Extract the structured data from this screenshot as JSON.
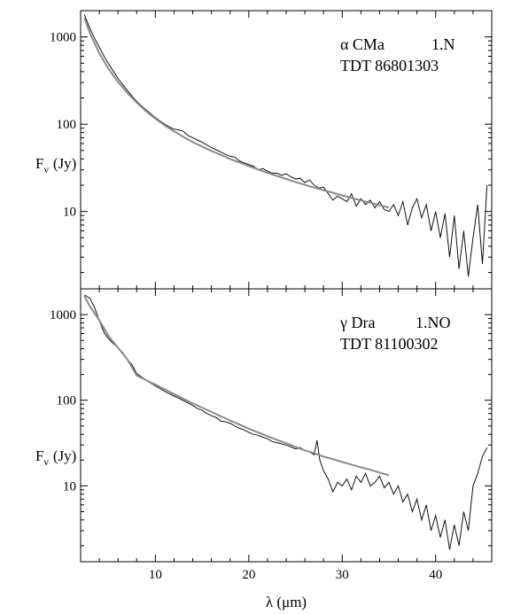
{
  "chart_data": [
    {
      "type": "line",
      "ylabel": "F_ν (Jy)",
      "ylabel_main": "F",
      "ylabel_sub": "ν",
      "ylabel_unit": "(Jy)",
      "xlabel": "",
      "xlim": [
        2,
        46
      ],
      "ylim": [
        1.3,
        2000
      ],
      "yscale": "log",
      "x_ticks": [
        10,
        20,
        30,
        40
      ],
      "x_ticks_labeled": false,
      "y_ticks": [
        10,
        100,
        1000
      ],
      "annotation": {
        "line1_name": "α CMa",
        "line1_code": "1.N",
        "line2": "TDT 86801303"
      },
      "series": [
        {
          "role": "observed",
          "color": "#111111",
          "x": [
            2.4,
            3,
            3.5,
            4,
            4.5,
            5,
            5.5,
            6,
            6.5,
            7,
            7.5,
            8,
            8.5,
            9,
            9.5,
            10,
            10.5,
            11,
            11.5,
            12,
            12.5,
            13,
            13.5,
            14,
            14.5,
            15,
            15.5,
            16,
            16.5,
            17,
            17.5,
            18,
            18.5,
            19,
            19.5,
            20,
            20.5,
            21,
            21.5,
            22,
            22.5,
            23,
            23.5,
            24,
            24.5,
            25,
            25.5,
            26,
            26.5,
            27,
            27.5,
            28,
            28.5,
            29,
            29.5,
            30,
            30.5,
            31,
            31.5,
            32,
            32.5,
            33,
            33.5,
            34,
            34.5,
            35,
            35.5,
            36,
            36.5,
            37,
            37.5,
            38,
            38.5,
            39,
            39.5,
            40,
            40.5,
            41,
            41.5,
            42,
            42.5,
            43,
            43.5,
            44,
            44.5,
            45,
            45.5
          ],
          "y": [
            1800,
            1250,
            960,
            760,
            600,
            490,
            405,
            335,
            285,
            245,
            210,
            183,
            163,
            146,
            132,
            119,
            109,
            100,
            93,
            88,
            86,
            83,
            74,
            70,
            66,
            62,
            58,
            54,
            51,
            48,
            45,
            43,
            42,
            38,
            36,
            34.5,
            33,
            30,
            31,
            29,
            27.5,
            27.5,
            26,
            27,
            25,
            23.5,
            24,
            21.5,
            23,
            20,
            18.5,
            19,
            16,
            13.5,
            15,
            14,
            13,
            16,
            11.5,
            14,
            12,
            13.5,
            11,
            13,
            10.5,
            10,
            12,
            9,
            13,
            7,
            11,
            14,
            8.5,
            12,
            6,
            10,
            5,
            9.5,
            3,
            9,
            2.2,
            6,
            1.8,
            5,
            12,
            2.5,
            20
          ]
        },
        {
          "role": "model",
          "color": "#8a8a8a",
          "x": [
            2.4,
            3,
            4,
            5,
            6,
            7,
            8,
            9,
            10,
            11,
            12,
            13,
            14,
            15,
            16,
            17,
            18,
            19,
            20,
            21,
            22,
            23,
            24,
            25,
            26,
            27,
            28,
            29,
            30,
            31,
            32,
            33,
            34,
            35
          ],
          "y": [
            1650,
            1100,
            650,
            430,
            305,
            228,
            177,
            141,
            116,
            97,
            83,
            71.5,
            62.5,
            55.5,
            49.5,
            44.5,
            40,
            36.5,
            33.2,
            30.3,
            27.8,
            25.6,
            23.6,
            21.8,
            20.2,
            18.8,
            17.5,
            16.4,
            15.3,
            14.3,
            13.4,
            12.6,
            11.8,
            11.1
          ]
        }
      ]
    },
    {
      "type": "line",
      "ylabel": "F_ν (Jy)",
      "ylabel_main": "F",
      "ylabel_sub": "ν",
      "ylabel_unit": "(Jy)",
      "xlabel": "λ (μm)",
      "xlim": [
        2,
        46
      ],
      "ylim": [
        1.3,
        2000
      ],
      "yscale": "log",
      "x_ticks": [
        10,
        20,
        30,
        40
      ],
      "x_ticks_labeled": true,
      "y_ticks": [
        10,
        100,
        1000
      ],
      "annotation": {
        "line1_name": "γ Dra",
        "line1_code": "1.NO",
        "line2": "TDT 81100302"
      },
      "series": [
        {
          "role": "observed",
          "color": "#111111",
          "x": [
            2.4,
            3,
            3.5,
            4,
            4.5,
            5,
            5.5,
            6,
            6.5,
            7,
            7.5,
            8,
            8.5,
            9,
            9.5,
            10,
            10.5,
            11,
            11.5,
            12,
            12.5,
            13,
            13.5,
            14,
            14.5,
            15,
            15.5,
            16,
            16.5,
            17,
            17.5,
            18,
            18.5,
            19,
            19.5,
            20,
            20.5,
            21,
            21.5,
            22,
            22.5,
            23,
            23.5,
            24,
            24.5,
            25,
            25.5,
            26,
            26.5,
            27,
            27.3,
            27.6,
            28,
            28.5,
            29,
            29.5,
            30,
            30.5,
            31,
            31.5,
            32,
            32.5,
            33,
            33.5,
            34,
            34.5,
            35,
            35.5,
            36,
            36.5,
            37,
            37.5,
            38,
            38.5,
            39,
            39.5,
            40,
            40.5,
            41,
            41.5,
            42,
            42.5,
            43,
            43.5,
            44,
            44.5,
            45,
            45.5
          ],
          "y": [
            1700,
            1550,
            1200,
            850,
            620,
            520,
            460,
            410,
            360,
            300,
            260,
            205,
            188,
            172,
            158,
            147,
            137,
            127,
            119,
            112,
            106,
            99,
            93,
            87,
            80,
            76,
            70,
            66,
            63,
            57,
            56,
            54,
            50,
            47,
            45,
            42,
            40,
            39,
            37,
            35.5,
            33,
            32,
            31,
            30,
            28.5,
            27,
            28,
            26,
            25,
            23,
            34,
            20,
            15,
            12,
            8.5,
            11,
            10,
            12,
            9,
            13,
            11,
            14,
            10,
            11,
            13,
            9.5,
            11,
            8,
            10,
            6.5,
            8,
            5,
            7,
            4,
            6,
            3,
            4.5,
            2.5,
            4,
            1.8,
            3.5,
            2,
            5,
            3,
            10,
            14,
            22,
            28
          ]
        },
        {
          "role": "model",
          "color": "#8a8a8a",
          "x": [
            2.4,
            3,
            4,
            5,
            6,
            7,
            8,
            9,
            10,
            11,
            12,
            13,
            14,
            15,
            16,
            17,
            18,
            19,
            20,
            21,
            22,
            23,
            24,
            25,
            26,
            27,
            28,
            29,
            30,
            31,
            32,
            33,
            34,
            35
          ],
          "y": [
            1650,
            1250,
            860,
            560,
            410,
            300,
            195,
            172,
            152,
            134,
            118,
            104,
            92,
            82,
            73,
            65,
            58,
            52,
            46.5,
            42,
            38,
            34.5,
            31.5,
            28.5,
            26,
            24,
            22,
            20.5,
            19,
            17.7,
            16.5,
            15.4,
            14.3,
            13.3
          ]
        }
      ]
    }
  ]
}
